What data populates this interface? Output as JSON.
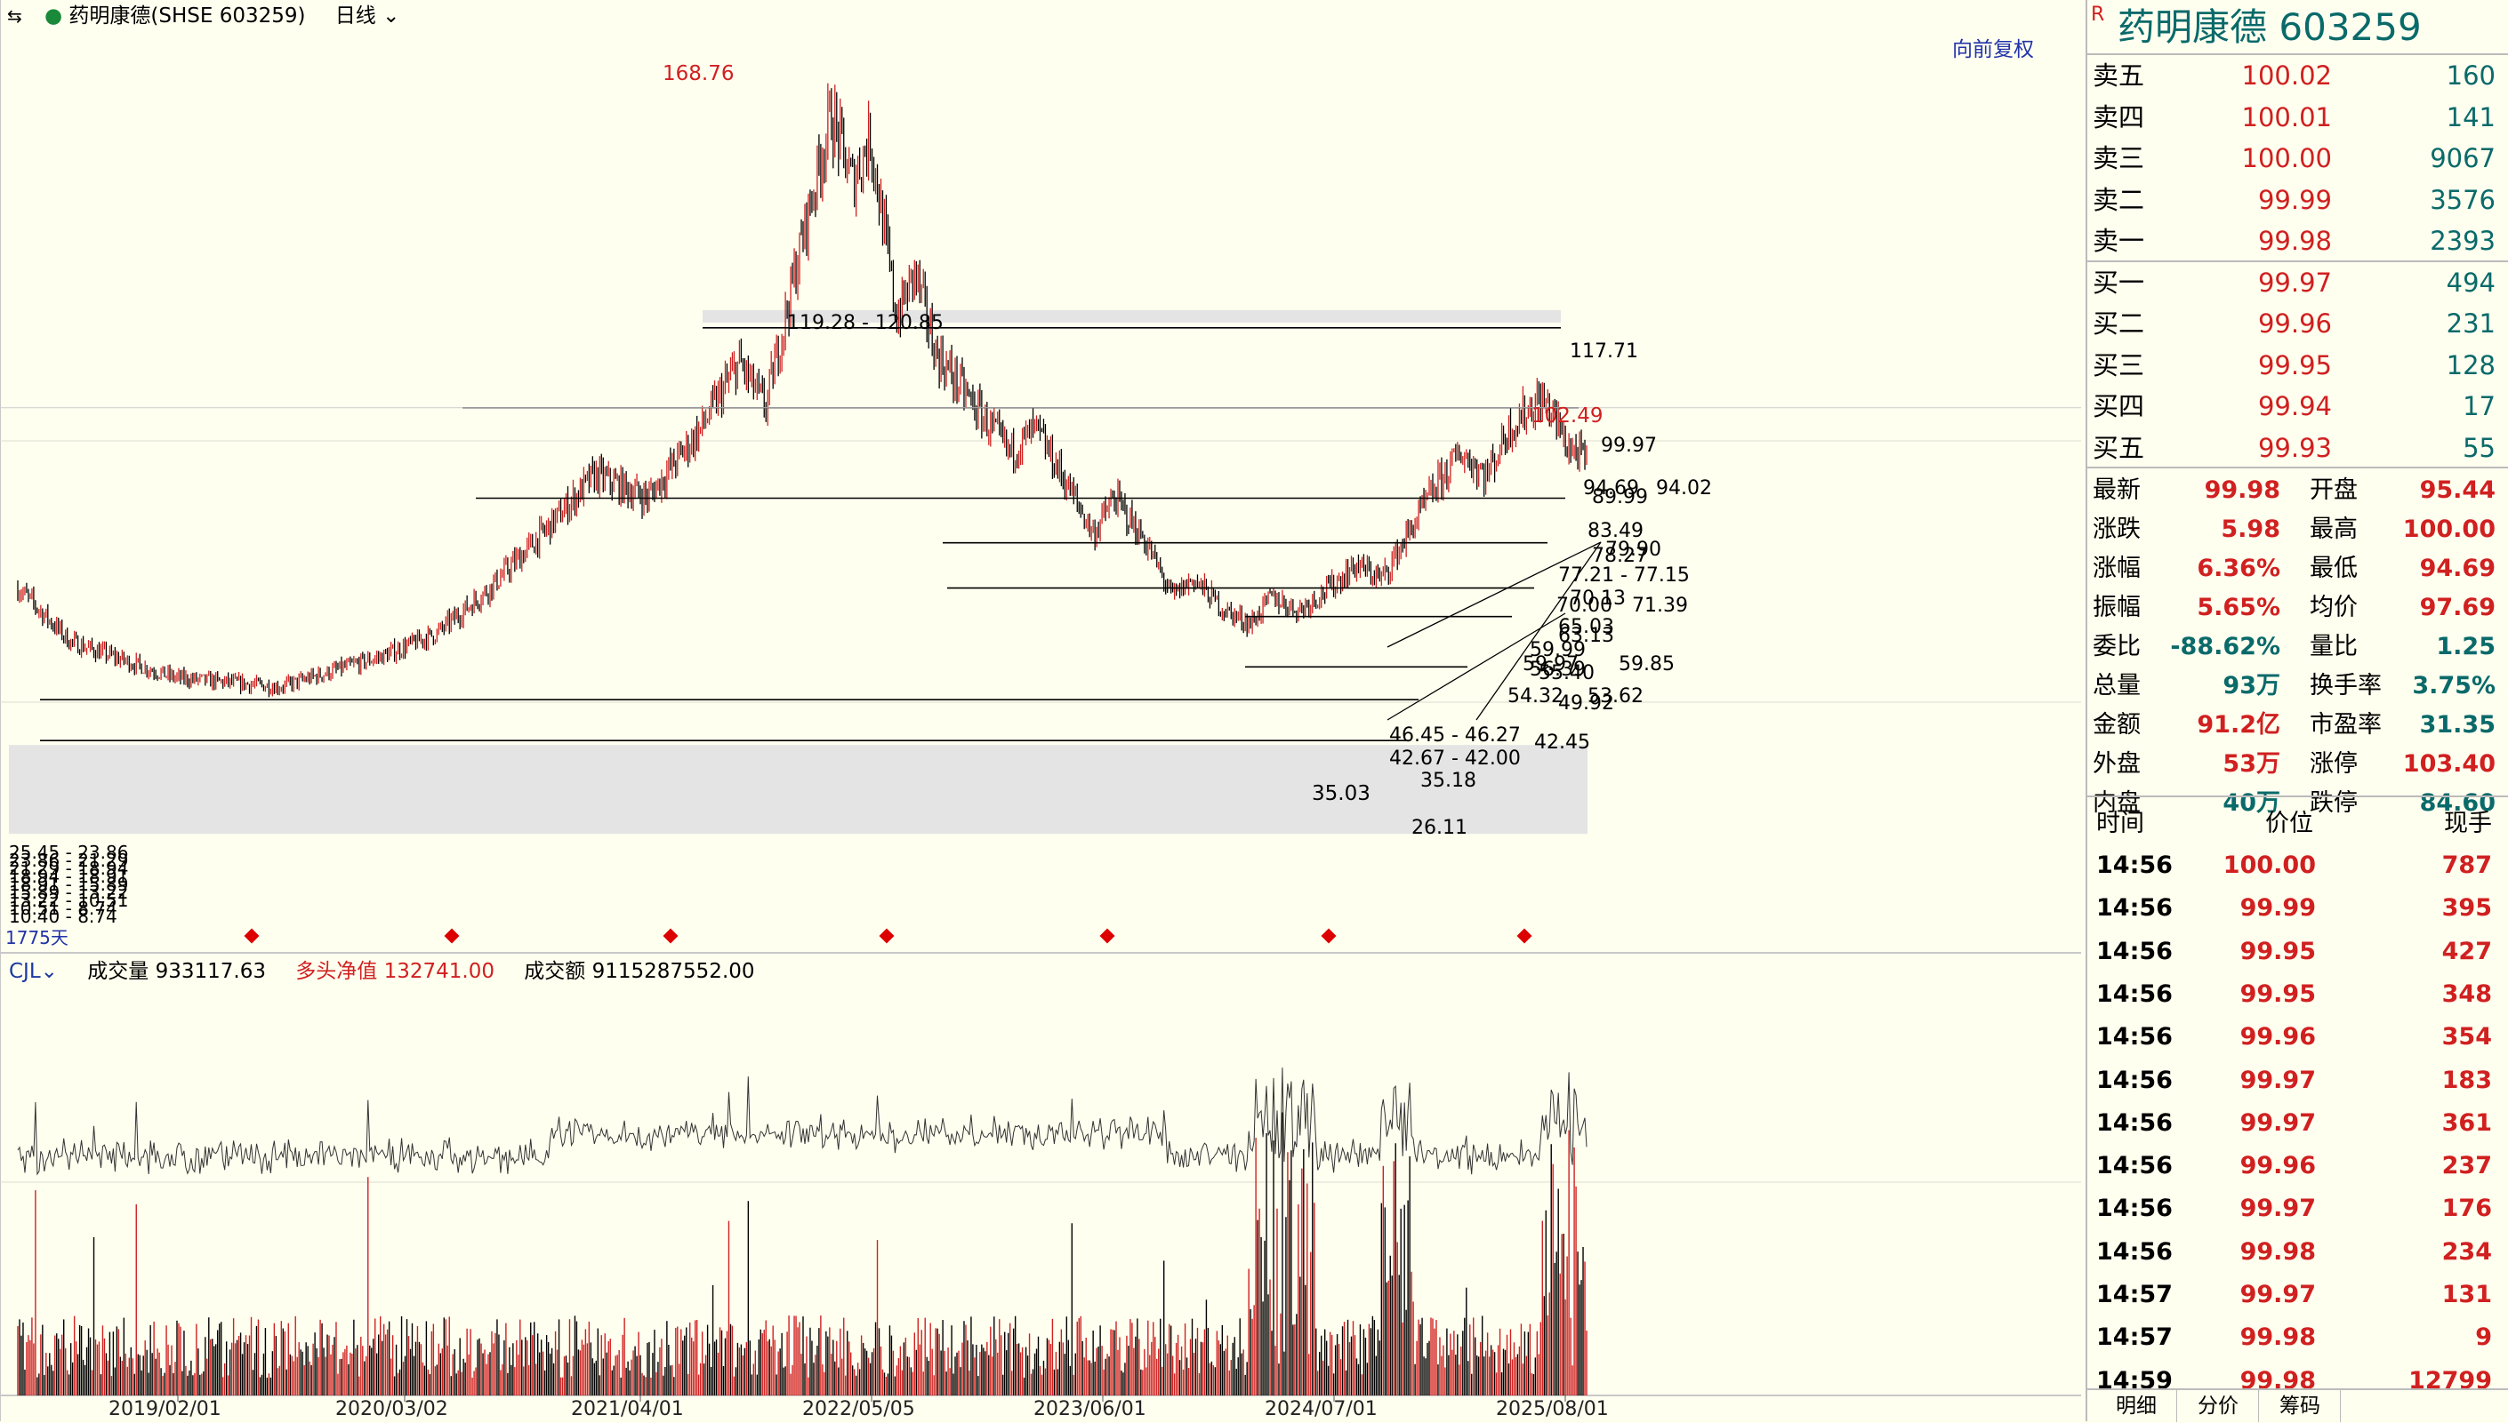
{
  "header": {
    "icon": "stock-switch-icon",
    "name": "药明康德",
    "exchange_code": "(SHSE 603259)",
    "period": "日线",
    "adjust": "向前复权"
  },
  "chart_data": {
    "type": "candlestick",
    "title": "",
    "peak_label": "168.76",
    "recent_high_label": "102.49",
    "low_label": "35.03",
    "price_levels": [
      {
        "label": "119.28 - 120.85",
        "value": 120.0
      },
      {
        "label": "117.71",
        "value": 117.71
      },
      {
        "label": "99.97",
        "value": 99.97
      },
      {
        "label": "94.69",
        "value": 94.69
      },
      {
        "label": "94.02",
        "value": 94.02
      },
      {
        "label": "89.99",
        "value": 89.99
      },
      {
        "label": "83.49",
        "value": 83.49
      },
      {
        "label": "79.90",
        "value": 79.9
      },
      {
        "label": "78.27",
        "value": 78.27
      },
      {
        "label": "77.21 - 77.15",
        "value": 77.18
      },
      {
        "label": "70.13",
        "value": 70.13
      },
      {
        "label": "70.00",
        "value": 70.0
      },
      {
        "label": "71.39",
        "value": 71.39
      },
      {
        "label": "65.03",
        "value": 65.03
      },
      {
        "label": "63.13",
        "value": 63.13
      },
      {
        "label": "59.99",
        "value": 59.99
      },
      {
        "label": "59.97",
        "value": 59.97
      },
      {
        "label": "59.85",
        "value": 59.85
      },
      {
        "label": "56.39",
        "value": 56.39
      },
      {
        "label": "55.40",
        "value": 55.4
      },
      {
        "label": "54.32",
        "value": 54.32
      },
      {
        "label": "53.62",
        "value": 53.62
      },
      {
        "label": "49.92",
        "value": 49.92
      },
      {
        "label": "46.45 - 46.27",
        "value": 46.36
      },
      {
        "label": "42.45",
        "value": 42.45
      },
      {
        "label": "42.67 - 42.00",
        "value": 42.3
      },
      {
        "label": "35.18",
        "value": 35.18
      },
      {
        "label": "26.11",
        "value": 26.11
      }
    ],
    "left_zone_labels": [
      "25.45 - 23.86",
      "23.86 - 21.29",
      "21.29 - 18.94",
      "18.94 - 18.91",
      "18.91 - 15.89",
      "15.89 - 13.22",
      "13.22 - 10.51",
      "10.51 - 8.74",
      "10.40 - 8.74"
    ],
    "day_count": "1775天",
    "x_ticks": [
      "2019/02/01",
      "2020/03/02",
      "2021/04/01",
      "2022/05/05",
      "2023/06/01",
      "2024/07/01",
      "2025/08/01"
    ],
    "path": [
      [
        0,
        60
      ],
      [
        20,
        48
      ],
      [
        60,
        40
      ],
      [
        100,
        38
      ],
      [
        140,
        45
      ],
      [
        160,
        50
      ],
      [
        180,
        60
      ],
      [
        200,
        72
      ],
      [
        220,
        85
      ],
      [
        240,
        80
      ],
      [
        260,
        95
      ],
      [
        275,
        110
      ],
      [
        285,
        100
      ],
      [
        300,
        140
      ],
      [
        310,
        165
      ],
      [
        318,
        150
      ],
      [
        325,
        160
      ],
      [
        335,
        120
      ],
      [
        342,
        130
      ],
      [
        350,
        112
      ],
      [
        365,
        100
      ],
      [
        378,
        90
      ],
      [
        388,
        95
      ],
      [
        398,
        85
      ],
      [
        410,
        72
      ],
      [
        418,
        80
      ],
      [
        430,
        70
      ],
      [
        440,
        58
      ],
      [
        448,
        62
      ],
      [
        460,
        55
      ],
      [
        470,
        52
      ],
      [
        478,
        58
      ],
      [
        488,
        55
      ],
      [
        500,
        60
      ],
      [
        510,
        65
      ],
      [
        520,
        62
      ],
      [
        530,
        72
      ],
      [
        540,
        82
      ],
      [
        550,
        90
      ],
      [
        560,
        85
      ],
      [
        568,
        95
      ],
      [
        580,
        102
      ],
      [
        585,
        99
      ],
      [
        590,
        92
      ],
      [
        598,
        88
      ]
    ]
  },
  "indicator": {
    "name": "CJL",
    "vol_label": "成交量",
    "vol_value": "933117.63",
    "net_label": "多头净值",
    "net_value": "132741.00",
    "amt_label": "成交额",
    "amt_value": "9115287552.00"
  },
  "panel": {
    "name": "药明康德",
    "code": "603259",
    "r_badge": "R",
    "asks": [
      {
        "k": "卖五",
        "p": "100.02",
        "v": "160"
      },
      {
        "k": "卖四",
        "p": "100.01",
        "v": "141"
      },
      {
        "k": "卖三",
        "p": "100.00",
        "v": "9067"
      },
      {
        "k": "卖二",
        "p": "99.99",
        "v": "3576"
      },
      {
        "k": "卖一",
        "p": "99.98",
        "v": "2393"
      }
    ],
    "bids": [
      {
        "k": "买一",
        "p": "99.97",
        "v": "494"
      },
      {
        "k": "买二",
        "p": "99.96",
        "v": "231"
      },
      {
        "k": "买三",
        "p": "99.95",
        "v": "128"
      },
      {
        "k": "买四",
        "p": "99.94",
        "v": "17"
      },
      {
        "k": "买五",
        "p": "99.93",
        "v": "55"
      }
    ],
    "stats": [
      {
        "k1": "最新",
        "v1": "99.98",
        "c1": "red",
        "k2": "开盘",
        "v2": "95.44",
        "c2": "red"
      },
      {
        "k1": "涨跌",
        "v1": "5.98",
        "c1": "red",
        "k2": "最高",
        "v2": "100.00",
        "c2": "red"
      },
      {
        "k1": "涨幅",
        "v1": "6.36%",
        "c1": "red",
        "k2": "最低",
        "v2": "94.69",
        "c2": "red"
      },
      {
        "k1": "振幅",
        "v1": "5.65%",
        "c1": "red",
        "k2": "均价",
        "v2": "97.69",
        "c2": "red"
      },
      {
        "k1": "委比",
        "v1": "-88.62%",
        "c1": "teal",
        "k2": "量比",
        "v2": "1.25",
        "c2": "teal"
      },
      {
        "k1": "总量",
        "v1": "93万",
        "c1": "teal",
        "k2": "换手率",
        "v2": "3.75%",
        "c2": "teal"
      },
      {
        "k1": "金额",
        "v1": "91.2亿",
        "c1": "red",
        "k2": "市盈率",
        "v2": "31.35",
        "c2": "teal"
      },
      {
        "k1": "外盘",
        "v1": "53万",
        "c1": "red",
        "k2": "涨停",
        "v2": "103.40",
        "c2": "red"
      },
      {
        "k1": "内盘",
        "v1": "40万",
        "c1": "teal",
        "k2": "跌停",
        "v2": "84.60",
        "c2": "teal"
      }
    ],
    "ticks_header": {
      "time": "时间",
      "price": "价位",
      "vol": "现手"
    },
    "ticks": [
      {
        "t": "14:56",
        "p": "100.00",
        "v": "787"
      },
      {
        "t": "14:56",
        "p": "99.99",
        "v": "395"
      },
      {
        "t": "14:56",
        "p": "99.95",
        "v": "427"
      },
      {
        "t": "14:56",
        "p": "99.95",
        "v": "348"
      },
      {
        "t": "14:56",
        "p": "99.96",
        "v": "354"
      },
      {
        "t": "14:56",
        "p": "99.97",
        "v": "183"
      },
      {
        "t": "14:56",
        "p": "99.97",
        "v": "361"
      },
      {
        "t": "14:56",
        "p": "99.96",
        "v": "237"
      },
      {
        "t": "14:56",
        "p": "99.97",
        "v": "176"
      },
      {
        "t": "14:56",
        "p": "99.98",
        "v": "234"
      },
      {
        "t": "14:57",
        "p": "99.97",
        "v": "131"
      },
      {
        "t": "14:57",
        "p": "99.98",
        "v": "9"
      },
      {
        "t": "14:59",
        "p": "99.98",
        "v": "12799"
      }
    ],
    "tabs": [
      "明细",
      "分价",
      "筹码"
    ]
  }
}
